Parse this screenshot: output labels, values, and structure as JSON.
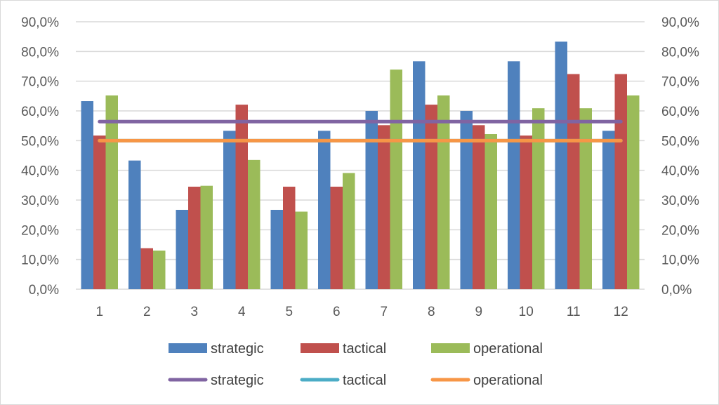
{
  "chart_data": {
    "type": "bar",
    "categories": [
      "1",
      "2",
      "3",
      "4",
      "5",
      "6",
      "7",
      "8",
      "9",
      "10",
      "11",
      "12"
    ],
    "series": [
      {
        "name": "strategic",
        "kind": "bar",
        "color": "#4f81bd",
        "values": [
          63.3,
          43.3,
          26.7,
          53.3,
          26.7,
          53.3,
          60.0,
          76.7,
          60.0,
          76.7,
          83.3,
          53.3
        ]
      },
      {
        "name": "tactical",
        "kind": "bar",
        "color": "#c0504d",
        "values": [
          51.7,
          13.8,
          34.5,
          62.1,
          34.5,
          34.5,
          55.2,
          62.1,
          55.2,
          51.7,
          72.4,
          72.4
        ]
      },
      {
        "name": "operational",
        "kind": "bar",
        "color": "#9bbb59",
        "values": [
          65.2,
          13.0,
          34.8,
          43.5,
          26.1,
          39.1,
          73.9,
          65.2,
          52.2,
          60.9,
          60.9,
          65.2
        ]
      },
      {
        "name": "strategic",
        "kind": "line",
        "color": "#8064a2",
        "values": [
          56.4,
          56.4,
          56.4,
          56.4,
          56.4,
          56.4,
          56.4,
          56.4,
          56.4,
          56.4,
          56.4,
          56.4
        ]
      },
      {
        "name": "tactical",
        "kind": "line",
        "color": "#4bacc6",
        "values": [
          50.0,
          50.0,
          50.0,
          50.0,
          50.0,
          50.0,
          50.0,
          50.0,
          50.0,
          50.0,
          50.0,
          50.0
        ]
      },
      {
        "name": "operational",
        "kind": "line",
        "color": "#f79646",
        "values": [
          50.0,
          50.0,
          50.0,
          50.0,
          50.0,
          50.0,
          50.0,
          50.0,
          50.0,
          50.0,
          50.0,
          50.0
        ]
      }
    ],
    "yticks": [
      "0,0%",
      "10,0%",
      "20,0%",
      "30,0%",
      "40,0%",
      "50,0%",
      "60,0%",
      "70,0%",
      "80,0%",
      "90,0%"
    ],
    "ylim": [
      0,
      90
    ],
    "secondary_axis": true,
    "grid": true,
    "gridColor": "#d9d9d9",
    "legend": "bottom"
  }
}
